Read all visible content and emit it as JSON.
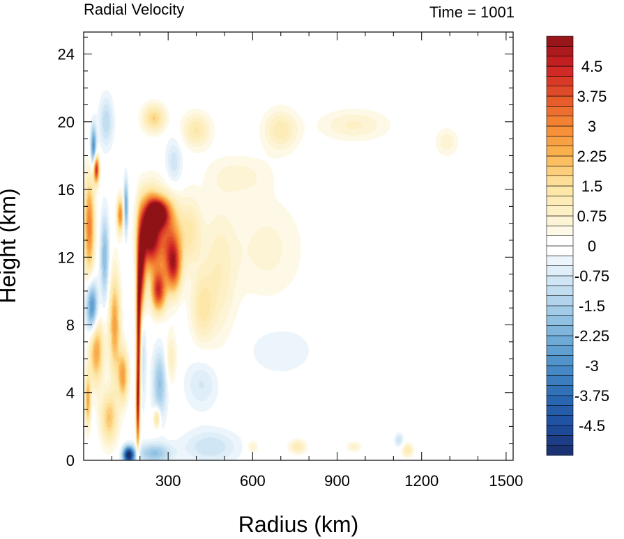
{
  "chart_data": {
    "type": "heatmap",
    "title_left": "Radial Velocity",
    "title_right": "Time = 1001",
    "xlabel": "Radius (km)",
    "ylabel": "Height (km)",
    "xlim": [
      0,
      1525
    ],
    "ylim": [
      0,
      25.3
    ],
    "xticks": [
      300,
      600,
      900,
      1200,
      1500
    ],
    "yticks": [
      0,
      4,
      8,
      12,
      16,
      20,
      24
    ],
    "colorbar": {
      "min": -5.25,
      "max": 5.25,
      "step": 0.25,
      "labels": [
        "4.5",
        "3.75",
        "3",
        "2.25",
        "1.5",
        "0.75",
        "0",
        "-0.75",
        "-1.5",
        "-2.25",
        "-3",
        "-3.75",
        "-4.5"
      ],
      "label_values": [
        4.5,
        3.75,
        3,
        2.25,
        1.5,
        0.75,
        0,
        -0.75,
        -1.5,
        -2.25,
        -3,
        -3.75,
        -4.5
      ],
      "color_stops": [
        {
          "v": -5.25,
          "c": "#1a2e6b"
        },
        {
          "v": -4.5,
          "c": "#1f4ea0"
        },
        {
          "v": -3.75,
          "c": "#2b6bb5"
        },
        {
          "v": -3.0,
          "c": "#4a8ec8"
        },
        {
          "v": -2.25,
          "c": "#76b0da"
        },
        {
          "v": -1.5,
          "c": "#a9d0ea"
        },
        {
          "v": -0.75,
          "c": "#d8eaf6"
        },
        {
          "v": 0,
          "c": "#ffffff"
        },
        {
          "v": 0.75,
          "c": "#fdf2cc"
        },
        {
          "v": 1.5,
          "c": "#fde6a3"
        },
        {
          "v": 2.25,
          "c": "#fbb652"
        },
        {
          "v": 3.0,
          "c": "#f58a35"
        },
        {
          "v": 3.75,
          "c": "#e35328"
        },
        {
          "v": 4.5,
          "c": "#cc2126"
        },
        {
          "v": 5.25,
          "c": "#8e1216"
        }
      ]
    },
    "features": [
      {
        "r": 235,
        "z": 13.5,
        "rw": 35,
        "zh": 2.0,
        "v": 6.0
      },
      {
        "r": 265,
        "z": 14.6,
        "rw": 35,
        "zh": 0.8,
        "v": 5.0
      },
      {
        "r": 205,
        "z": 11.0,
        "rw": 15,
        "zh": 3.0,
        "v": 5.0
      },
      {
        "r": 195,
        "z": 7.0,
        "rw": 8,
        "zh": 4.0,
        "v": 4.5
      },
      {
        "r": 192,
        "z": 3.0,
        "rw": 6,
        "zh": 2.5,
        "v": 3.5
      },
      {
        "r": 300,
        "z": 13.0,
        "rw": 45,
        "zh": 2.5,
        "v": 3.0
      },
      {
        "r": 265,
        "z": 10.0,
        "rw": 25,
        "zh": 1.2,
        "v": 4.0
      },
      {
        "r": 320,
        "z": 11.5,
        "rw": 25,
        "zh": 1.5,
        "v": 3.2
      },
      {
        "r": 380,
        "z": 13.5,
        "rw": 40,
        "zh": 2.0,
        "v": 1.2
      },
      {
        "r": 480,
        "z": 11.0,
        "rw": 60,
        "zh": 4.0,
        "v": 0.9
      },
      {
        "r": 420,
        "z": 9.0,
        "rw": 40,
        "zh": 2.0,
        "v": 1.2
      },
      {
        "r": 650,
        "z": 12.5,
        "rw": 130,
        "zh": 3.0,
        "v": 0.6
      },
      {
        "r": 250,
        "z": 20.2,
        "rw": 40,
        "zh": 0.8,
        "v": 1.8
      },
      {
        "r": 400,
        "z": 19.5,
        "rw": 50,
        "zh": 1.0,
        "v": 1.3
      },
      {
        "r": 700,
        "z": 19.5,
        "rw": 60,
        "zh": 1.2,
        "v": 1.2
      },
      {
        "r": 960,
        "z": 19.8,
        "rw": 120,
        "zh": 0.9,
        "v": 0.8
      },
      {
        "r": 1290,
        "z": 18.8,
        "rw": 40,
        "zh": 0.8,
        "v": 0.7
      },
      {
        "r": 550,
        "z": 16.8,
        "rw": 110,
        "zh": 1.2,
        "v": 0.6
      },
      {
        "r": 20,
        "z": 13.8,
        "rw": 18,
        "zh": 2.8,
        "v": 3.2
      },
      {
        "r": 45,
        "z": 17.2,
        "rw": 10,
        "zh": 0.8,
        "v": 4.5
      },
      {
        "r": 35,
        "z": 18.5,
        "rw": 10,
        "zh": 1.2,
        "v": -3.0
      },
      {
        "r": 30,
        "z": 9.0,
        "rw": 20,
        "zh": 1.5,
        "v": -3.2
      },
      {
        "r": 75,
        "z": 12.0,
        "rw": 15,
        "zh": 2.5,
        "v": -2.0
      },
      {
        "r": 45,
        "z": 6.5,
        "rw": 25,
        "zh": 2.0,
        "v": 2.6
      },
      {
        "r": 110,
        "z": 8.0,
        "rw": 20,
        "zh": 3.0,
        "v": 2.6
      },
      {
        "r": 140,
        "z": 5.0,
        "rw": 18,
        "zh": 1.5,
        "v": 2.6
      },
      {
        "r": 130,
        "z": 14.5,
        "rw": 12,
        "zh": 1.0,
        "v": 3.0
      },
      {
        "r": 150,
        "z": 15.0,
        "rw": 8,
        "zh": 1.5,
        "v": -2.5
      },
      {
        "r": 90,
        "z": 2.5,
        "rw": 30,
        "zh": 1.5,
        "v": 2.0
      },
      {
        "r": 15,
        "z": 3.5,
        "rw": 10,
        "zh": 1.5,
        "v": 2.5
      },
      {
        "r": 160,
        "z": 0.3,
        "rw": 20,
        "zh": 0.5,
        "v": -5.5
      },
      {
        "r": 250,
        "z": 0.4,
        "rw": 60,
        "zh": 0.6,
        "v": -1.8
      },
      {
        "r": 450,
        "z": 0.8,
        "rw": 100,
        "zh": 1.0,
        "v": -1.0
      },
      {
        "r": 210,
        "z": 8.0,
        "rw": 12,
        "zh": 4.0,
        "v": -1.5
      },
      {
        "r": 270,
        "z": 4.5,
        "rw": 25,
        "zh": 2.0,
        "v": -1.8
      },
      {
        "r": 260,
        "z": 2.5,
        "rw": 12,
        "zh": 0.6,
        "v": 2.0
      },
      {
        "r": 420,
        "z": 4.5,
        "rw": 60,
        "zh": 1.5,
        "v": -0.8
      },
      {
        "r": 700,
        "z": 6.5,
        "rw": 120,
        "zh": 1.5,
        "v": -0.5
      },
      {
        "r": 80,
        "z": 20.0,
        "rw": 25,
        "zh": 1.5,
        "v": -1.2
      },
      {
        "r": 320,
        "z": 17.5,
        "rw": 30,
        "zh": 1.5,
        "v": -1.0
      },
      {
        "r": 1120,
        "z": 1.2,
        "rw": 15,
        "zh": 0.4,
        "v": -1.0
      },
      {
        "r": 760,
        "z": 0.8,
        "rw": 30,
        "zh": 0.4,
        "v": 1.2
      },
      {
        "r": 1150,
        "z": 0.6,
        "rw": 20,
        "zh": 0.4,
        "v": 1.2
      },
      {
        "r": 960,
        "z": 0.8,
        "rw": 25,
        "zh": 0.3,
        "v": 0.8
      },
      {
        "r": 600,
        "z": 0.8,
        "rw": 20,
        "zh": 0.4,
        "v": 0.8
      },
      {
        "r": 310,
        "z": 6.0,
        "rw": 20,
        "zh": 1.5,
        "v": 1.0
      }
    ]
  }
}
